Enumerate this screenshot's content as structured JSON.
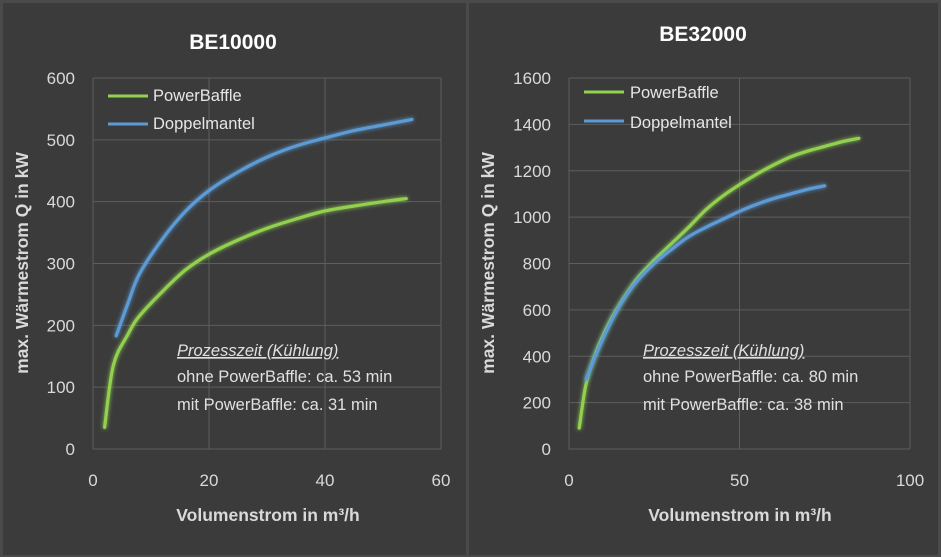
{
  "chart_data": [
    {
      "type": "line",
      "title": "BE10000",
      "xlabel": "Volumenstrom in m³/h",
      "ylabel": "max. Wärmestrom Q in kW",
      "xlim": [
        0,
        60
      ],
      "ylim": [
        0,
        600
      ],
      "xticks": [
        "0",
        "20",
        "40",
        "60"
      ],
      "yticks": [
        "0",
        "100",
        "200",
        "300",
        "400",
        "500",
        "600"
      ],
      "grid": true,
      "legend_position": "top-left",
      "series": [
        {
          "name": "PowerBaffle",
          "color": "#92d050",
          "points": [
            [
              2,
              35
            ],
            [
              3.5,
              135
            ],
            [
              6,
              185
            ],
            [
              8,
              215
            ],
            [
              12,
              255
            ],
            [
              16,
              290
            ],
            [
              20,
              315
            ],
            [
              25,
              338
            ],
            [
              30,
              357
            ],
            [
              35,
              372
            ],
            [
              40,
              385
            ],
            [
              45,
              393
            ],
            [
              50,
              400
            ],
            [
              54,
              405
            ]
          ]
        },
        {
          "name": "Doppelmantel",
          "color": "#5b9bd5",
          "points": [
            [
              4,
              183
            ],
            [
              6,
              235
            ],
            [
              8,
              283
            ],
            [
              12,
              340
            ],
            [
              16,
              385
            ],
            [
              20,
              418
            ],
            [
              25,
              448
            ],
            [
              30,
              472
            ],
            [
              35,
              490
            ],
            [
              40,
              503
            ],
            [
              45,
              515
            ],
            [
              50,
              524
            ],
            [
              55,
              533
            ]
          ]
        }
      ],
      "annotation": {
        "heading": "Prozesszeit (Kühlung)",
        "lines": [
          "ohne PowerBaffle: ca. 53 min",
          "mit PowerBaffle: ca. 31 min"
        ]
      }
    },
    {
      "type": "line",
      "title": "BE32000",
      "xlabel": "Volumenstrom in m³/h",
      "ylabel": "max. Wärmestrom Q in kW",
      "xlim": [
        0,
        100
      ],
      "ylim": [
        0,
        1600
      ],
      "xticks": [
        "0",
        "50",
        "100"
      ],
      "yticks": [
        "0",
        "200",
        "400",
        "600",
        "800",
        "1000",
        "1200",
        "1400",
        "1600"
      ],
      "grid": true,
      "legend_position": "top-left",
      "series": [
        {
          "name": "PowerBaffle",
          "color": "#92d050",
          "points": [
            [
              3,
              90
            ],
            [
              5,
              280
            ],
            [
              8,
              420
            ],
            [
              12,
              550
            ],
            [
              16,
              650
            ],
            [
              20,
              735
            ],
            [
              25,
              815
            ],
            [
              30,
              885
            ],
            [
              35,
              955
            ],
            [
              40,
              1030
            ],
            [
              45,
              1090
            ],
            [
              50,
              1140
            ],
            [
              55,
              1185
            ],
            [
              60,
              1225
            ],
            [
              65,
              1260
            ],
            [
              70,
              1285
            ],
            [
              75,
              1305
            ],
            [
              80,
              1325
            ],
            [
              85,
              1340
            ]
          ]
        },
        {
          "name": "Doppelmantel",
          "color": "#5b9bd5",
          "points": [
            [
              5,
              300
            ],
            [
              8,
              410
            ],
            [
              12,
              540
            ],
            [
              16,
              645
            ],
            [
              20,
              725
            ],
            [
              25,
              800
            ],
            [
              30,
              860
            ],
            [
              35,
              915
            ],
            [
              40,
              955
            ],
            [
              45,
              990
            ],
            [
              50,
              1025
            ],
            [
              55,
              1055
            ],
            [
              60,
              1080
            ],
            [
              65,
              1100
            ],
            [
              70,
              1120
            ],
            [
              75,
              1135
            ]
          ]
        }
      ],
      "annotation": {
        "heading": "Prozesszeit (Kühlung)",
        "lines": [
          "ohne PowerBaffle: ca. 80 min",
          "mit PowerBaffle: ca. 38 min"
        ]
      }
    }
  ]
}
